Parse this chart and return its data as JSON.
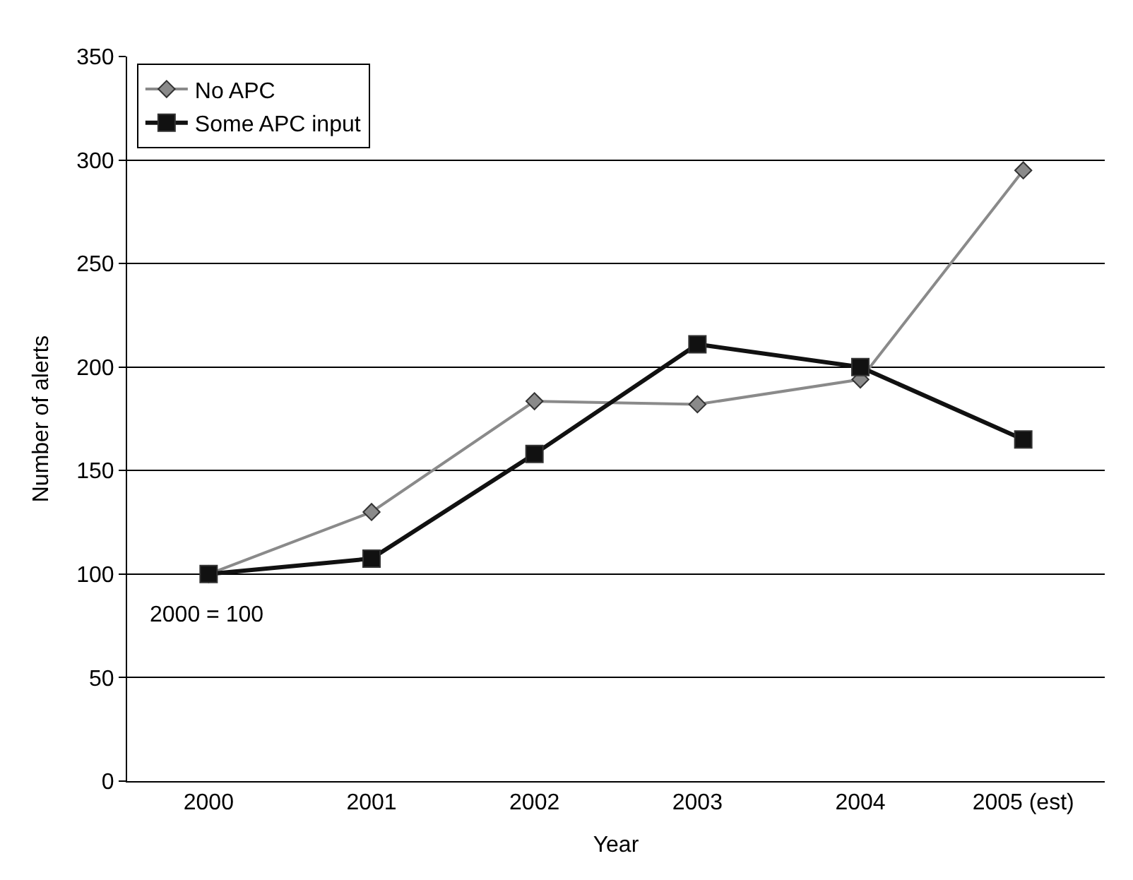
{
  "chart_data": {
    "type": "line",
    "xlabel": "Year",
    "ylabel": "Number of alerts",
    "categories": [
      "2000",
      "2001",
      "2002",
      "2003",
      "2004",
      "2005 (est)"
    ],
    "series": [
      {
        "name": "No APC",
        "color": "#8a8a8a",
        "marker": "diamond",
        "values": [
          100,
          130,
          183.5,
          182,
          194,
          295
        ]
      },
      {
        "name": "Some APC input",
        "color": "#111111",
        "marker": "square",
        "values": [
          100,
          107.5,
          158,
          211,
          200,
          165
        ]
      }
    ],
    "ylim": [
      0,
      350
    ],
    "yticks": [
      0,
      50,
      100,
      150,
      200,
      250,
      300,
      350
    ],
    "grid": "y",
    "legend": "top left",
    "annotations": [
      "2000 = 100"
    ]
  }
}
